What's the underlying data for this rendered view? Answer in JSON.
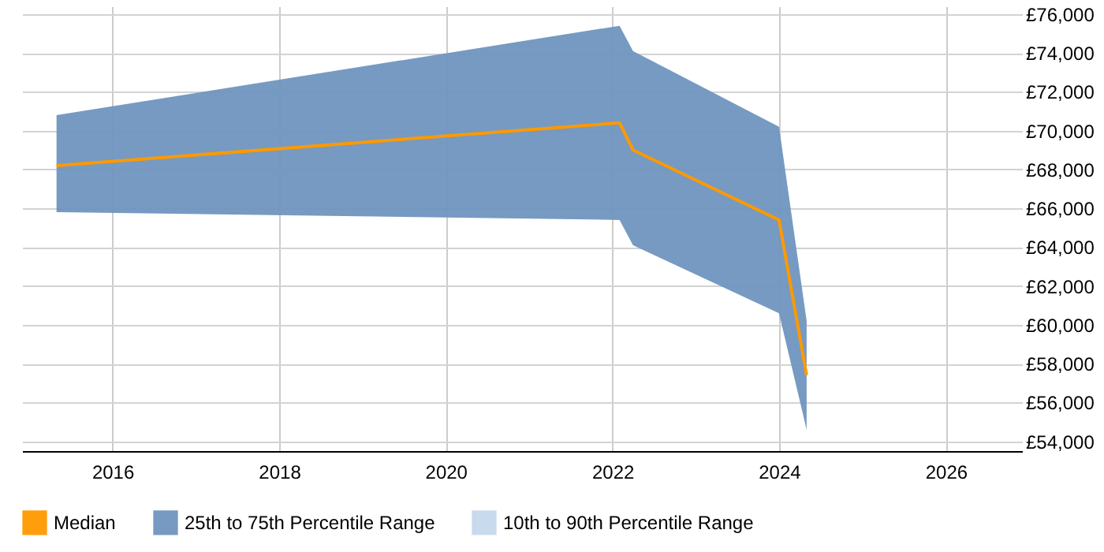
{
  "chart_data": {
    "type": "line",
    "x": [
      "2015-05",
      "2022-02",
      "2022-04",
      "2024-01",
      "2024-05"
    ],
    "series": [
      {
        "name": "Median",
        "color": "#ff9900",
        "values": [
          68200,
          70400,
          69000,
          65400,
          57400
        ]
      },
      {
        "name": "25th to 75th Percentile Range",
        "type": "area",
        "color": "#6f95bf",
        "values": [
          null,
          null,
          null,
          null,
          null
        ],
        "lower": [
          65800,
          65400,
          64100,
          60600,
          54600
        ],
        "upper": [
          70800,
          75400,
          74100,
          70200,
          60200
        ]
      },
      {
        "name": "10th to 90th Percentile Range",
        "type": "area",
        "color": "#c6d9ee",
        "values": [
          null,
          null,
          null,
          null,
          null
        ]
      }
    ],
    "xlim": [
      "2014-12",
      "2026-12"
    ],
    "xticks": [
      "2016",
      "2018",
      "2020",
      "2022",
      "2024",
      "2026"
    ],
    "ylim": [
      53500,
      76400
    ],
    "yticks": [
      {
        "value": 54000,
        "label": "£54,000"
      },
      {
        "value": 56000,
        "label": "£56,000"
      },
      {
        "value": 58000,
        "label": "£58,000"
      },
      {
        "value": 60000,
        "label": "£60,000"
      },
      {
        "value": 62000,
        "label": "£62,000"
      },
      {
        "value": 64000,
        "label": "£64,000"
      },
      {
        "value": 66000,
        "label": "£66,000"
      },
      {
        "value": 68000,
        "label": "£68,000"
      },
      {
        "value": 70000,
        "label": "£70,000"
      },
      {
        "value": 72000,
        "label": "£72,000"
      },
      {
        "value": 74000,
        "label": "£74,000"
      },
      {
        "value": 76000,
        "label": "£76,000"
      }
    ],
    "grid": true,
    "legend": "bottom"
  }
}
